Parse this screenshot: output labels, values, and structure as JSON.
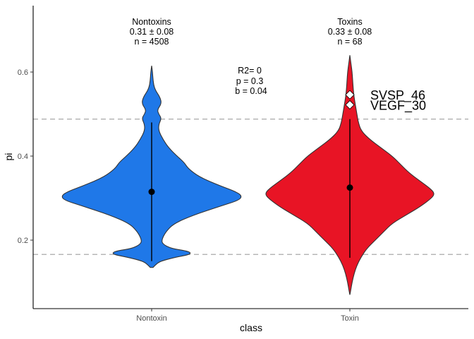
{
  "chart_data": {
    "type": "violin",
    "xlabel": "class",
    "ylabel": "pi",
    "ylim": [
      0.08,
      0.76
    ],
    "yticks": [
      0.2,
      0.4,
      0.6
    ],
    "ytick_labels": [
      "0.2",
      "0.4",
      "0.6"
    ],
    "categories": [
      "Nontoxin",
      "Toxin"
    ],
    "groups": [
      {
        "category": "Nontoxin",
        "color": "#1F78E8",
        "mean": 0.315,
        "range": [
          0.15,
          0.48
        ],
        "header": [
          "Nontoxins",
          "0.31 ± 0.08",
          "n = 4508"
        ],
        "density": [
          [
            0.135,
            0.005
          ],
          [
            0.14,
            0.012
          ],
          [
            0.15,
            0.03
          ],
          [
            0.16,
            0.09
          ],
          [
            0.165,
            0.13
          ],
          [
            0.17,
            0.14
          ],
          [
            0.175,
            0.12
          ],
          [
            0.18,
            0.07
          ],
          [
            0.19,
            0.04
          ],
          [
            0.2,
            0.035
          ],
          [
            0.22,
            0.05
          ],
          [
            0.24,
            0.08
          ],
          [
            0.26,
            0.15
          ],
          [
            0.28,
            0.24
          ],
          [
            0.295,
            0.31
          ],
          [
            0.305,
            0.32
          ],
          [
            0.315,
            0.3
          ],
          [
            0.33,
            0.24
          ],
          [
            0.35,
            0.17
          ],
          [
            0.37,
            0.13
          ],
          [
            0.385,
            0.115
          ],
          [
            0.4,
            0.09
          ],
          [
            0.42,
            0.06
          ],
          [
            0.44,
            0.04
          ],
          [
            0.46,
            0.025
          ],
          [
            0.475,
            0.025
          ],
          [
            0.49,
            0.035
          ],
          [
            0.5,
            0.025
          ],
          [
            0.51,
            0.02
          ],
          [
            0.525,
            0.035
          ],
          [
            0.54,
            0.03
          ],
          [
            0.56,
            0.01
          ],
          [
            0.58,
            0.005
          ],
          [
            0.6,
            0.003
          ],
          [
            0.615,
            0.0
          ]
        ]
      },
      {
        "category": "Toxin",
        "color": "#E81425",
        "mean": 0.325,
        "range": [
          0.158,
          0.488
        ],
        "header": [
          "Toxins",
          "0.33 ± 0.08",
          "n = 68"
        ],
        "outliers": [
          {
            "y": 0.546,
            "label": "SVSP_46"
          },
          {
            "y": 0.522,
            "label": "VEGF_30"
          }
        ],
        "density": [
          [
            0.07,
            0.0
          ],
          [
            0.08,
            0.003
          ],
          [
            0.1,
            0.008
          ],
          [
            0.12,
            0.015
          ],
          [
            0.14,
            0.025
          ],
          [
            0.16,
            0.04
          ],
          [
            0.18,
            0.06
          ],
          [
            0.2,
            0.09
          ],
          [
            0.22,
            0.12
          ],
          [
            0.24,
            0.15
          ],
          [
            0.26,
            0.2
          ],
          [
            0.28,
            0.25
          ],
          [
            0.3,
            0.29
          ],
          [
            0.31,
            0.3
          ],
          [
            0.32,
            0.29
          ],
          [
            0.34,
            0.25
          ],
          [
            0.36,
            0.21
          ],
          [
            0.38,
            0.18
          ],
          [
            0.4,
            0.15
          ],
          [
            0.42,
            0.11
          ],
          [
            0.44,
            0.07
          ],
          [
            0.46,
            0.04
          ],
          [
            0.48,
            0.03
          ],
          [
            0.5,
            0.025
          ],
          [
            0.52,
            0.02
          ],
          [
            0.54,
            0.015
          ],
          [
            0.56,
            0.012
          ],
          [
            0.58,
            0.01
          ],
          [
            0.6,
            0.008
          ],
          [
            0.62,
            0.004
          ],
          [
            0.64,
            0.0
          ]
        ]
      }
    ],
    "reference_lines": [
      0.166,
      0.488
    ],
    "stats_annotation": [
      "R2= 0",
      "p = 0.3",
      "b = 0.04"
    ],
    "grid": false
  }
}
